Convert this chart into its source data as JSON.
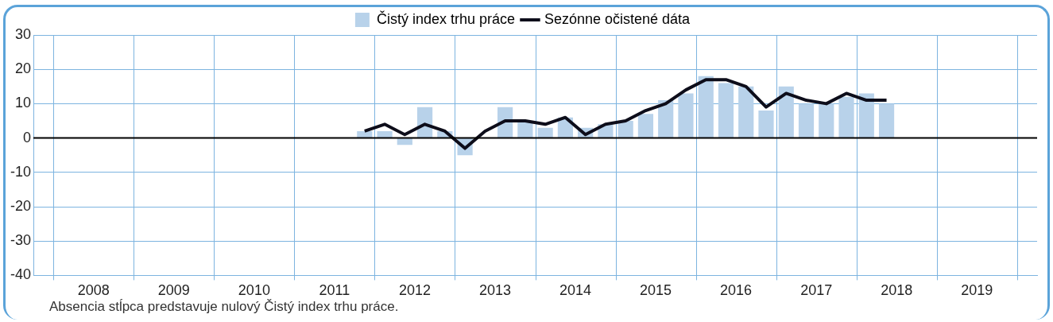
{
  "chart_data": {
    "type": "bar",
    "x": [
      2011.375,
      2011.625,
      2011.875,
      2012.125,
      2012.375,
      2012.625,
      2012.875,
      2013.125,
      2013.375,
      2013.625,
      2013.875,
      2014.125,
      2014.375,
      2014.625,
      2014.875,
      2015.125,
      2015.375,
      2015.625,
      2015.875,
      2016.125,
      2016.375,
      2016.625,
      2016.875,
      2017.125,
      2017.375,
      2017.625,
      2017.875
    ],
    "series": [
      {
        "name": "Čistý index trhu práce",
        "color": "#b8d2ea",
        "values": [
          2,
          2,
          -2,
          9,
          2,
          -5,
          0,
          9,
          5,
          3,
          6,
          3,
          4,
          5,
          7,
          11,
          13,
          18,
          16,
          15,
          8,
          15,
          10,
          10,
          12,
          13,
          10
        ]
      },
      {
        "name": "Sezónne očistené dáta",
        "type": "line",
        "color": "#0d0d1a",
        "values": [
          2,
          4,
          1,
          4,
          2,
          -3,
          2,
          5,
          5,
          4,
          6,
          1,
          4,
          5,
          8,
          10,
          14,
          17,
          17,
          15,
          9,
          13,
          11,
          10,
          13,
          11,
          11
        ]
      }
    ],
    "xlim": [
      2007.5,
      2019.5
    ],
    "xticks": [
      {
        "value": 2007.5,
        "label": null
      },
      2008,
      {
        "value": 2008.5,
        "label": null
      },
      2009,
      {
        "value": 2009.5,
        "label": null
      },
      2010,
      {
        "value": 2010.5,
        "label": null
      },
      2011,
      {
        "value": 2011.5,
        "label": null
      },
      2012,
      {
        "value": 2012.5,
        "label": null
      },
      2013,
      {
        "value": 2013.5,
        "label": null
      },
      2014,
      {
        "value": 2014.5,
        "label": null
      },
      2015,
      {
        "value": 2015.5,
        "label": null
      },
      2016,
      {
        "value": 2016.5,
        "label": null
      },
      2017,
      {
        "value": 2017.5,
        "label": null
      },
      2018,
      {
        "value": 2018.5,
        "label": null
      },
      2019,
      {
        "value": 2019.5,
        "label": null
      }
    ],
    "ylim": [
      -40,
      30
    ],
    "yticks": [
      -40,
      -30,
      -20,
      -10,
      0,
      10,
      20,
      30
    ],
    "ref_lines": [
      {
        "axis": "y",
        "value": 0,
        "color": "#000000"
      }
    ],
    "grid": true,
    "legend": "top",
    "marker": "none",
    "line_style": "solid",
    "annotations": [
      "Absencia stĺpca predstavuje nulový Čistý index trhu práce."
    ]
  }
}
